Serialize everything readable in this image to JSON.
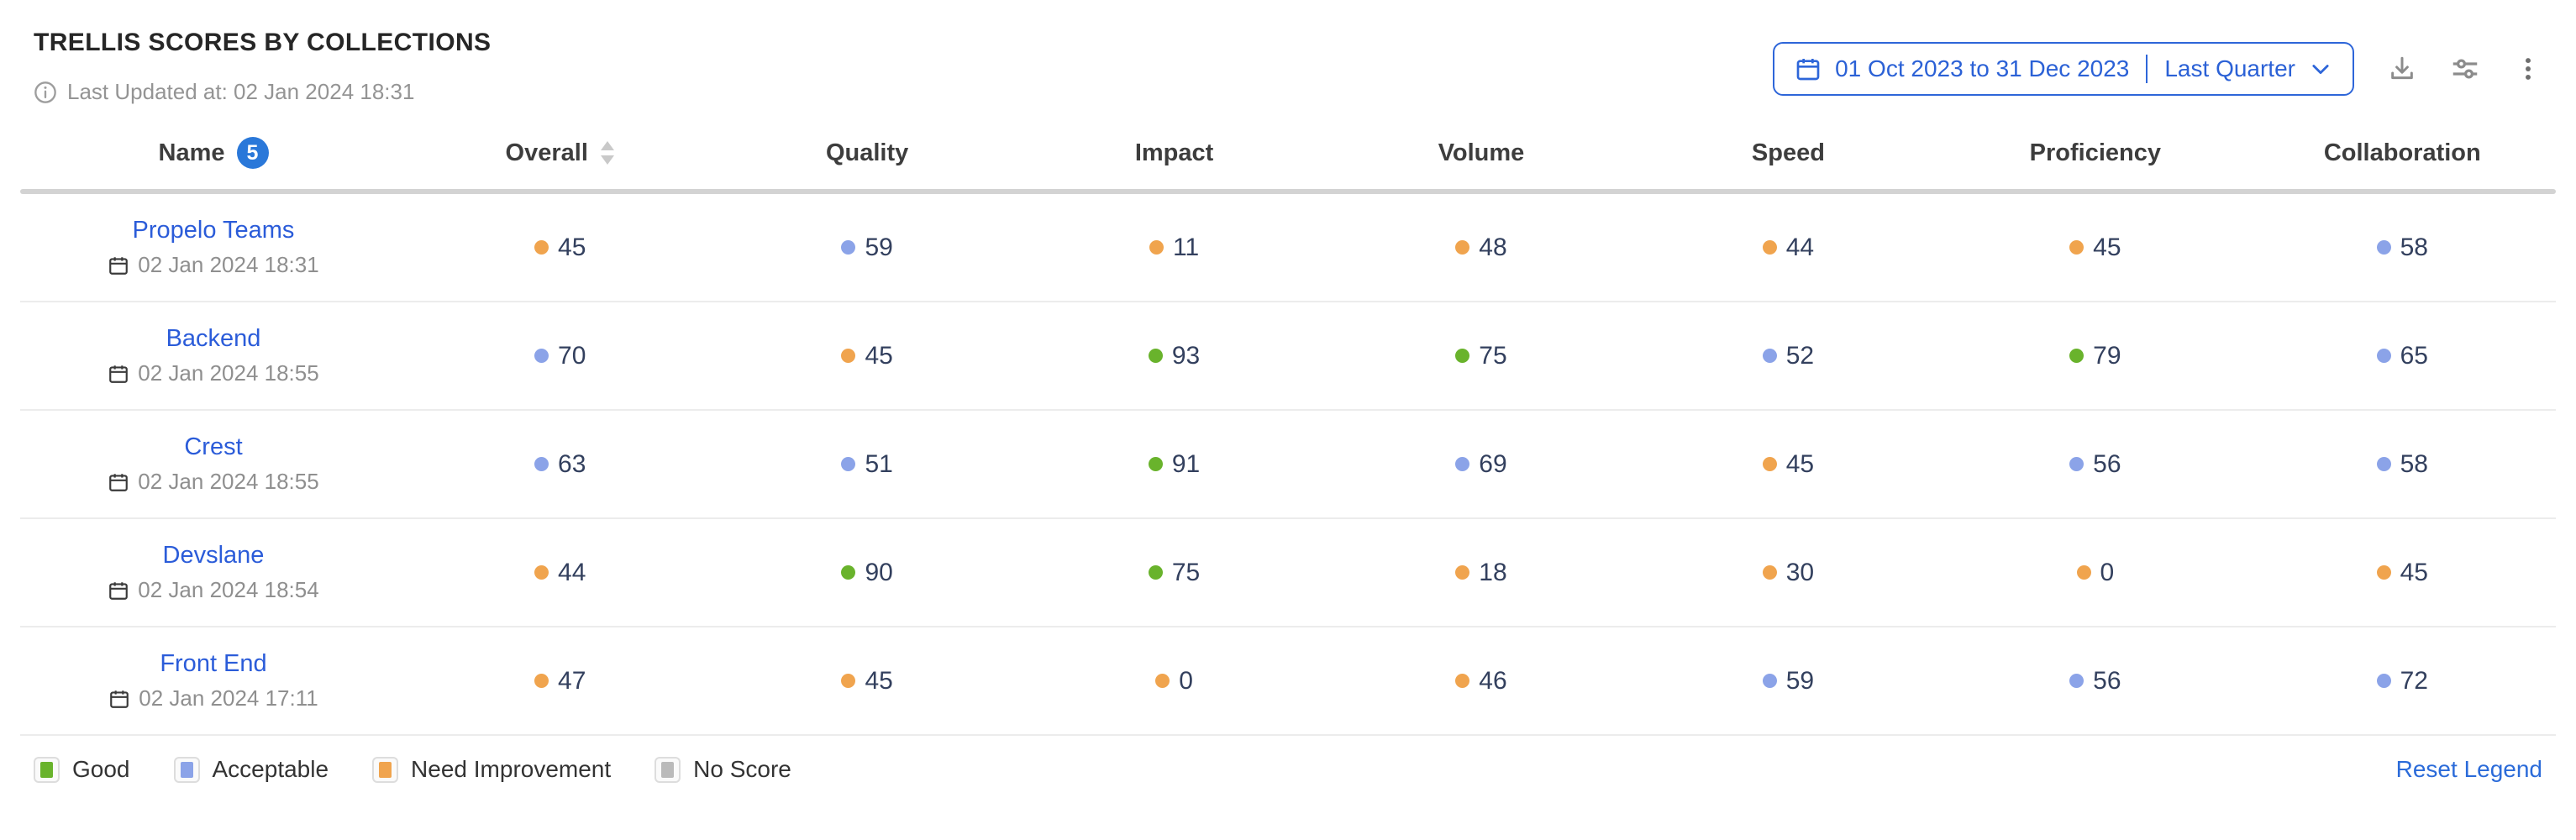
{
  "header": {
    "title": "TRELLIS SCORES BY COLLECTIONS",
    "last_updated": "Last Updated at: 02 Jan 2024 18:31",
    "date_range": "01 Oct 2023 to 31 Dec 2023",
    "date_preset": "Last Quarter"
  },
  "colors": {
    "good": "#69b32c",
    "acceptable": "#8ba3e8",
    "need_improvement": "#f0a44e",
    "no_score": "#bababa",
    "link_blue": "#2b5cd9",
    "picker_blue": "#2e66d9",
    "badge_blue": "#2a78d9"
  },
  "table": {
    "row_count_badge": "5",
    "columns": [
      "Name",
      "Overall",
      "Quality",
      "Impact",
      "Volume",
      "Speed",
      "Proficiency",
      "Collaboration"
    ],
    "rows": [
      {
        "name": "Propelo Teams",
        "date": "02 Jan 2024 18:31",
        "scores": [
          {
            "value": 45,
            "status": "need_improvement"
          },
          {
            "value": 59,
            "status": "acceptable"
          },
          {
            "value": 11,
            "status": "need_improvement"
          },
          {
            "value": 48,
            "status": "need_improvement"
          },
          {
            "value": 44,
            "status": "need_improvement"
          },
          {
            "value": 45,
            "status": "need_improvement"
          },
          {
            "value": 58,
            "status": "acceptable"
          }
        ]
      },
      {
        "name": "Backend",
        "date": "02 Jan 2024 18:55",
        "scores": [
          {
            "value": 70,
            "status": "acceptable"
          },
          {
            "value": 45,
            "status": "need_improvement"
          },
          {
            "value": 93,
            "status": "good"
          },
          {
            "value": 75,
            "status": "good"
          },
          {
            "value": 52,
            "status": "acceptable"
          },
          {
            "value": 79,
            "status": "good"
          },
          {
            "value": 65,
            "status": "acceptable"
          }
        ]
      },
      {
        "name": "Crest",
        "date": "02 Jan 2024 18:55",
        "scores": [
          {
            "value": 63,
            "status": "acceptable"
          },
          {
            "value": 51,
            "status": "acceptable"
          },
          {
            "value": 91,
            "status": "good"
          },
          {
            "value": 69,
            "status": "acceptable"
          },
          {
            "value": 45,
            "status": "need_improvement"
          },
          {
            "value": 56,
            "status": "acceptable"
          },
          {
            "value": 58,
            "status": "acceptable"
          }
        ]
      },
      {
        "name": "Devslane",
        "date": "02 Jan 2024 18:54",
        "scores": [
          {
            "value": 44,
            "status": "need_improvement"
          },
          {
            "value": 90,
            "status": "good"
          },
          {
            "value": 75,
            "status": "good"
          },
          {
            "value": 18,
            "status": "need_improvement"
          },
          {
            "value": 30,
            "status": "need_improvement"
          },
          {
            "value": 0,
            "status": "need_improvement"
          },
          {
            "value": 45,
            "status": "need_improvement"
          }
        ]
      },
      {
        "name": "Front End",
        "date": "02 Jan 2024 17:11",
        "scores": [
          {
            "value": 47,
            "status": "need_improvement"
          },
          {
            "value": 45,
            "status": "need_improvement"
          },
          {
            "value": 0,
            "status": "need_improvement"
          },
          {
            "value": 46,
            "status": "need_improvement"
          },
          {
            "value": 59,
            "status": "acceptable"
          },
          {
            "value": 56,
            "status": "acceptable"
          },
          {
            "value": 72,
            "status": "acceptable"
          }
        ]
      }
    ]
  },
  "legend": {
    "items": [
      {
        "label": "Good",
        "status": "good"
      },
      {
        "label": "Acceptable",
        "status": "acceptable"
      },
      {
        "label": "Need Improvement",
        "status": "need_improvement"
      },
      {
        "label": "No Score",
        "status": "no_score"
      }
    ],
    "reset_label": "Reset Legend"
  }
}
